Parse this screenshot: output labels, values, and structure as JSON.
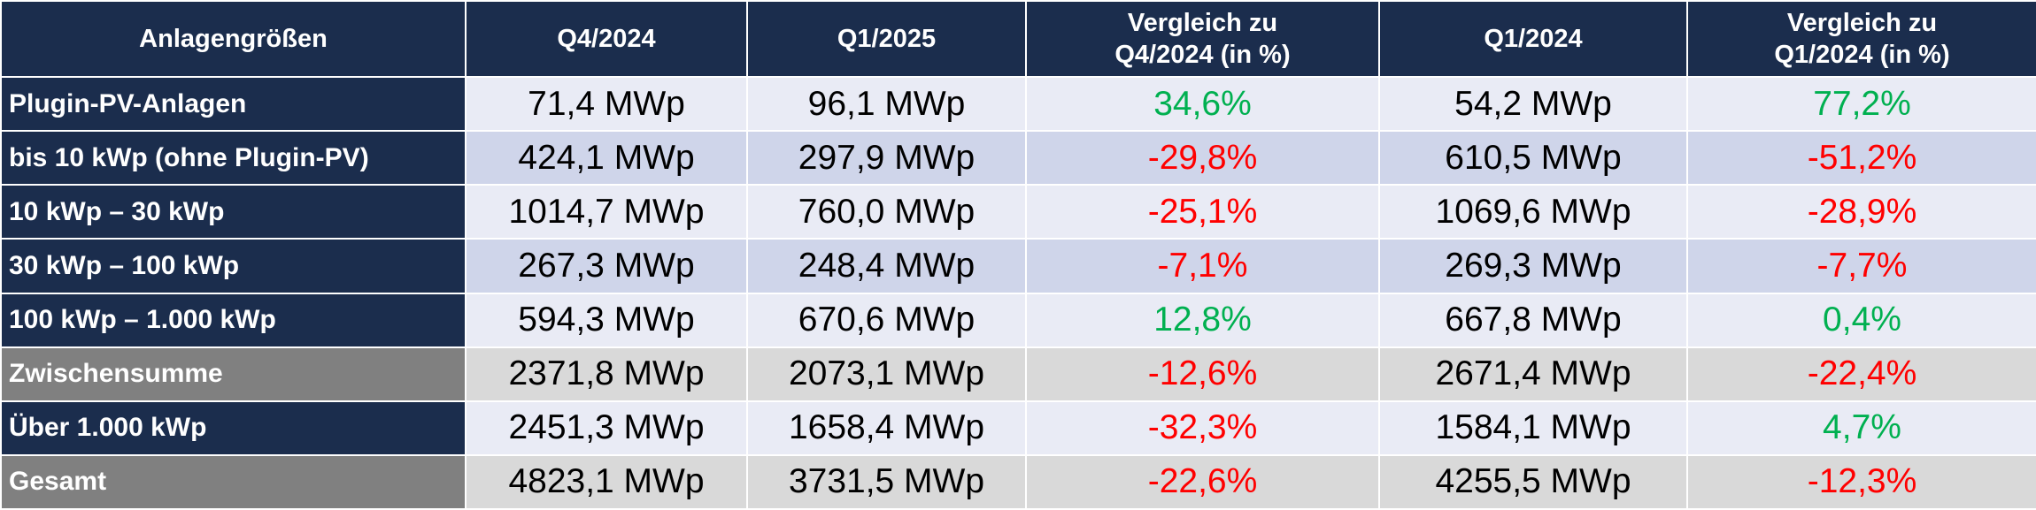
{
  "table": {
    "header": [
      "Anlagengrößen",
      "Q4/2024",
      "Q1/2025",
      "Vergleich zu\nQ4/2024 (in %)",
      "Q1/2024",
      "Vergleich zu\nQ1/2024 (in %)"
    ],
    "rows": [
      [
        "Plugin-PV-Anlagen",
        "71,4 MWp",
        "96,1 MWp",
        "34,6%",
        "54,2 MWp",
        "77,2%"
      ],
      [
        "bis 10 kWp (ohne Plugin-PV)",
        "424,1 MWp",
        "297,9 MWp",
        "-29,8%",
        "610,5 MWp",
        "-51,2%"
      ],
      [
        "10 kWp – 30 kWp",
        "1014,7 MWp",
        "760,0 MWp",
        "-25,1%",
        "1069,6 MWp",
        "-28,9%"
      ],
      [
        "30 kWp – 100 kWp",
        "267,3 MWp",
        "248,4 MWp",
        "-7,1%",
        "269,3 MWp",
        "-7,7%"
      ],
      [
        "100 kWp – 1.000 kWp",
        "594,3 MWp",
        "670,6 MWp",
        "12,8%",
        "667,8 MWp",
        "0,4%"
      ],
      [
        "Zwischensumme",
        "2371,8 MWp",
        "2073,1 MWp",
        "-12,6%",
        "2671,4 MWp",
        "-22,4%"
      ],
      [
        "Über 1.000 kWp",
        "2451,3 MWp",
        "1658,4 MWp",
        "-32,3%",
        "1584,1 MWp",
        "4,7%"
      ],
      [
        "Gesamt",
        "4823,1 MWp",
        "3731,5 MWp",
        "-22,6%",
        "4255,5 MWp",
        "-12,3%"
      ]
    ]
  }
}
